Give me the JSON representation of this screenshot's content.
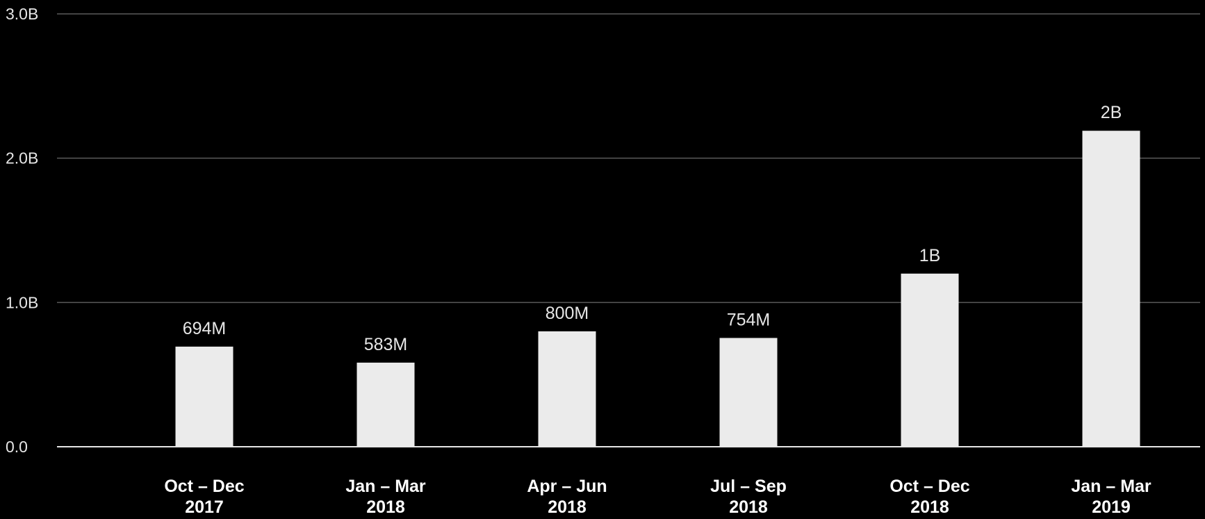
{
  "chart_data": {
    "type": "bar",
    "categories": [
      [
        "Oct – Dec",
        "2017"
      ],
      [
        "Jan – Mar",
        "2018"
      ],
      [
        "Apr – Jun",
        "2018"
      ],
      [
        "Jul – Sep",
        "2018"
      ],
      [
        "Oct – Dec",
        "2018"
      ],
      [
        "Jan – Mar",
        "2019"
      ]
    ],
    "values": [
      694000000,
      583000000,
      800000000,
      754000000,
      1200000000,
      2190000000
    ],
    "value_labels": [
      "694M",
      "583M",
      "800M",
      "754M",
      "1B",
      "2B"
    ],
    "ylim": [
      0,
      3000000000
    ],
    "y_ticks": [
      {
        "value": 0,
        "label": "0.0"
      },
      {
        "value": 1000000000,
        "label": "1.0B"
      },
      {
        "value": 2000000000,
        "label": "2.0B"
      },
      {
        "value": 3000000000,
        "label": "3.0B"
      }
    ],
    "title": "",
    "xlabel": "",
    "ylabel": "",
    "grid": true,
    "legend": "none",
    "colors": {
      "background": "#000000",
      "bar": "#ebebeb",
      "gridline": "#5a5a5a",
      "baseline": "#e6e6e6",
      "text": "#e6e6e6"
    }
  }
}
